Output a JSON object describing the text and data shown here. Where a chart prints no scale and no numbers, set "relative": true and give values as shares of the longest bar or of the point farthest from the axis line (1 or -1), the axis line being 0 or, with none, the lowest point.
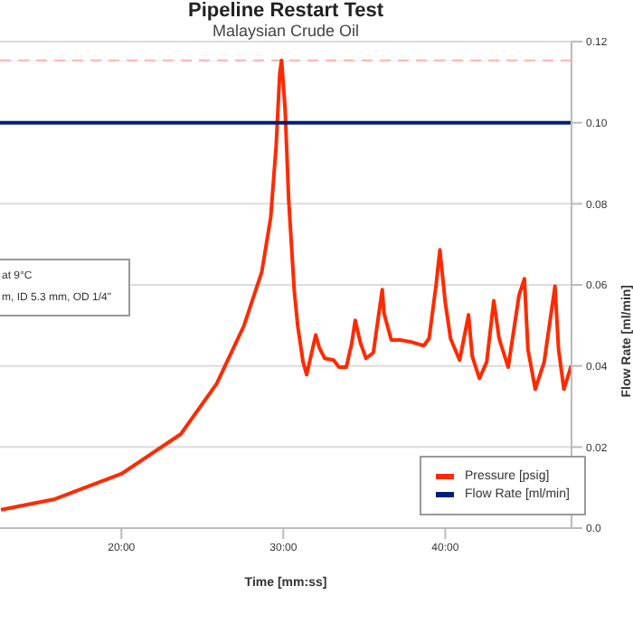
{
  "chart_data": {
    "type": "line",
    "title": "Pipeline Restart Test",
    "subtitle": "Malaysian Crude Oil",
    "xlabel": "Time  [mm:ss]",
    "y2label": "Flow Rate  [ml/min]",
    "annotations": [
      "at 9°C",
      "m, ID 5.3 mm, OD 1/4\""
    ],
    "relative": true,
    "xlim": [
      12.5,
      47.8
    ],
    "xticks": [
      {
        "value": 20,
        "label": "20:00"
      },
      {
        "value": 30,
        "label": "30:00"
      },
      {
        "value": 40,
        "label": "40:00"
      }
    ],
    "y2lim": [
      0,
      0.12
    ],
    "y2ticks": [
      {
        "value": 0,
        "label": "0.0"
      },
      0.02,
      0.04,
      0.06,
      0.08,
      {
        "value": 0.1,
        "label": "0.10"
      },
      0.12
    ],
    "grid": "y",
    "legend": "bottom right",
    "marker": "none",
    "line_style": "solid",
    "ref_lines": [
      {
        "axis": "y",
        "value": 1,
        "color": "#ffb3a8",
        "line_style": "dashed"
      }
    ],
    "series": [
      {
        "name": "Pressure  [psig]",
        "color": "#ff2a00",
        "x": [
          12.56,
          15.89,
          20,
          23.67,
          25.89,
          27.56,
          28.67,
          29.22,
          29.56,
          29.78,
          29.89,
          30.11,
          30.33,
          30.67,
          30.89,
          31.22,
          31.44,
          32,
          32.22,
          32.56,
          33.11,
          33.44,
          33.89,
          34.22,
          34.44,
          34.78,
          35.11,
          35.56,
          36.11,
          36.22,
          36.67,
          37.22,
          37.89,
          38.67,
          39,
          39.44,
          39.67,
          40,
          40.33,
          40.89,
          41.44,
          41.67,
          42.11,
          42.56,
          43,
          43.33,
          43.89,
          44.56,
          44.89,
          45.11,
          45.56,
          46.11,
          46.78,
          47,
          47.33,
          47.78
        ],
        "values": [
          0.039,
          0.062,
          0.116,
          0.201,
          0.309,
          0.432,
          0.548,
          0.664,
          0.819,
          0.973,
          1,
          0.896,
          0.703,
          0.51,
          0.432,
          0.355,
          0.328,
          0.413,
          0.386,
          0.363,
          0.359,
          0.344,
          0.344,
          0.394,
          0.444,
          0.394,
          0.363,
          0.375,
          0.51,
          0.459,
          0.402,
          0.402,
          0.398,
          0.39,
          0.405,
          0.521,
          0.595,
          0.483,
          0.405,
          0.359,
          0.456,
          0.367,
          0.32,
          0.355,
          0.486,
          0.405,
          0.344,
          0.498,
          0.533,
          0.382,
          0.297,
          0.355,
          0.517,
          0.382,
          0.297,
          0.347
        ]
      },
      {
        "name": "Flow Rate  [ml/min]",
        "color": "#001f7a",
        "axis": "y2",
        "x": [
          12.5,
          47.8
        ],
        "values": [
          0.1,
          0.1
        ]
      }
    ]
  }
}
